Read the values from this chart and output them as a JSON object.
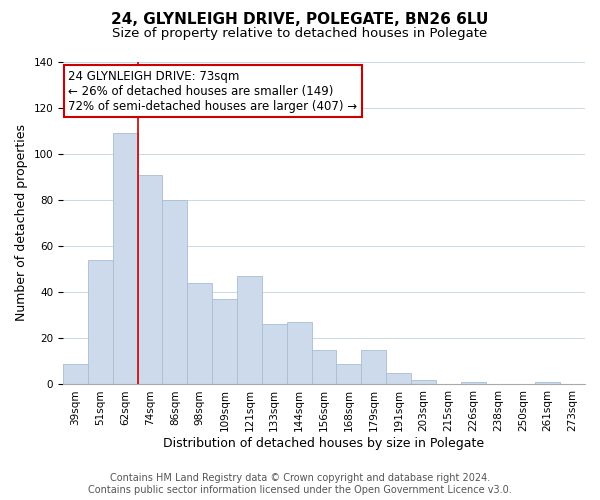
{
  "title": "24, GLYNLEIGH DRIVE, POLEGATE, BN26 6LU",
  "subtitle": "Size of property relative to detached houses in Polegate",
  "xlabel": "Distribution of detached houses by size in Polegate",
  "ylabel": "Number of detached properties",
  "bar_labels": [
    "39sqm",
    "51sqm",
    "62sqm",
    "74sqm",
    "86sqm",
    "98sqm",
    "109sqm",
    "121sqm",
    "133sqm",
    "144sqm",
    "156sqm",
    "168sqm",
    "179sqm",
    "191sqm",
    "203sqm",
    "215sqm",
    "226sqm",
    "238sqm",
    "250sqm",
    "261sqm",
    "273sqm"
  ],
  "bar_values": [
    9,
    54,
    109,
    91,
    80,
    44,
    37,
    47,
    26,
    27,
    15,
    9,
    15,
    5,
    2,
    0,
    1,
    0,
    0,
    1,
    0
  ],
  "bar_color": "#cddaeb",
  "bar_edge_color": "#a8bdd4",
  "vline_color": "#cc0000",
  "ylim": [
    0,
    140
  ],
  "annotation_title": "24 GLYNLEIGH DRIVE: 73sqm",
  "annotation_line1": "← 26% of detached houses are smaller (149)",
  "annotation_line2": "72% of semi-detached houses are larger (407) →",
  "annotation_box_color": "#ffffff",
  "annotation_box_edge": "#cc0000",
  "footer1": "Contains HM Land Registry data © Crown copyright and database right 2024.",
  "footer2": "Contains public sector information licensed under the Open Government Licence v3.0.",
  "title_fontsize": 11,
  "subtitle_fontsize": 9.5,
  "axis_label_fontsize": 9,
  "tick_fontsize": 7.5,
  "annotation_fontsize": 8.5,
  "footer_fontsize": 7
}
